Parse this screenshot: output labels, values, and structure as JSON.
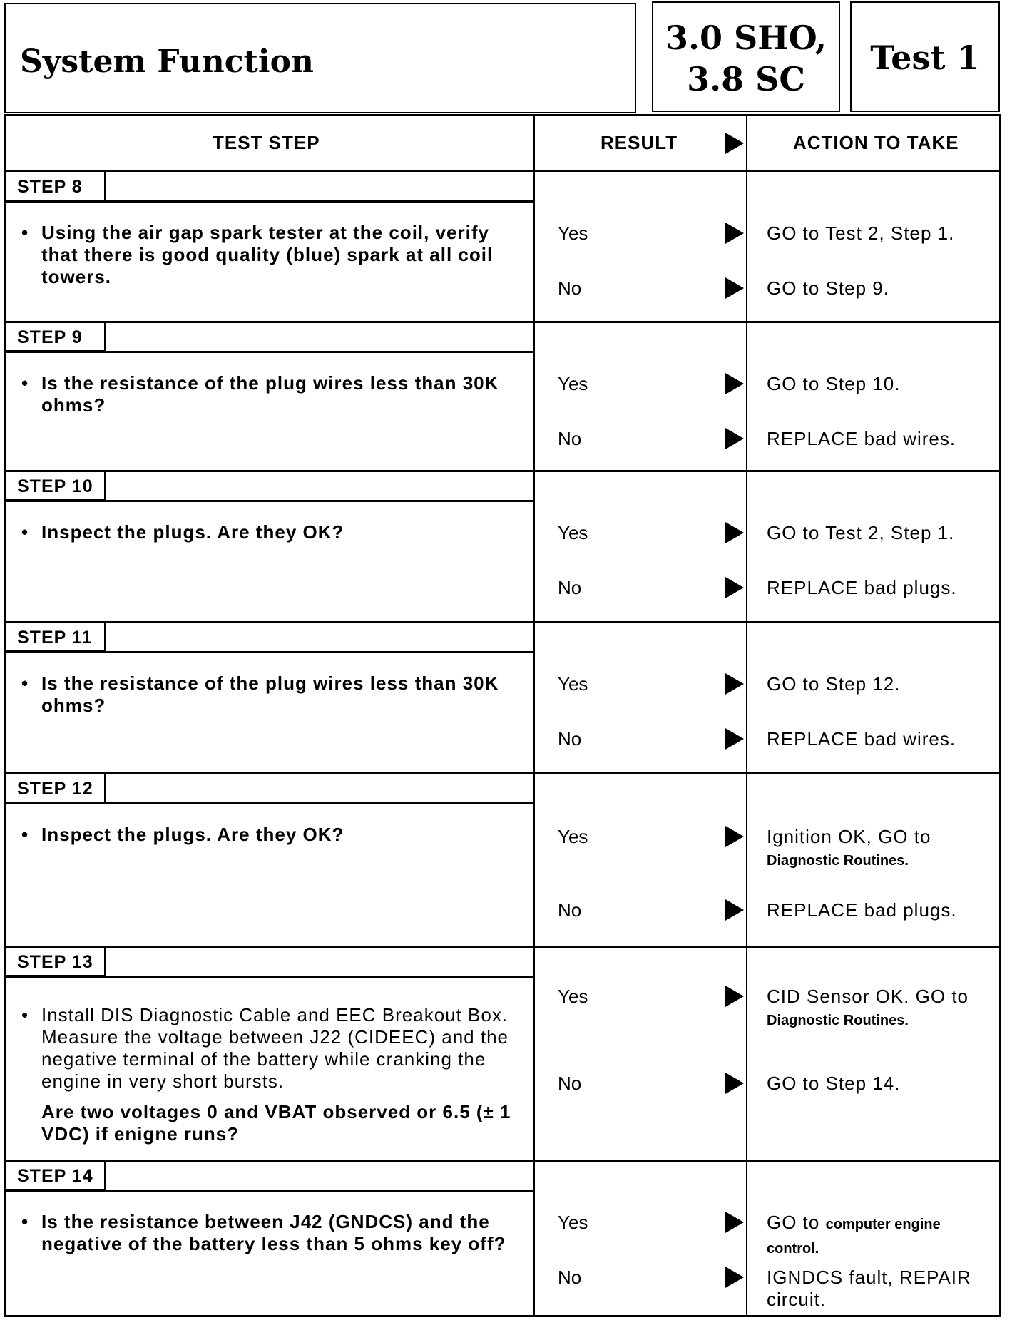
{
  "header": {
    "title": "System Function",
    "model": "3.0 SHO, 3.8 SC",
    "model_line1": "3.0 SHO,",
    "model_line2": "3.8 SC",
    "test": "Test 1"
  },
  "columns": {
    "test_step": "TEST STEP",
    "result": "RESULT",
    "action": "ACTION TO TAKE"
  },
  "steps": [
    {
      "label": "STEP 8",
      "question": "Using the air gap spark tester at the coil, verify that there is good quality (blue) spark at all coil towers.",
      "yes": "Yes",
      "yes_action": "GO to Test 2, Step 1.",
      "no": "No",
      "no_action": "GO to Step 9."
    },
    {
      "label": "STEP 9",
      "question": "Is the resistance of the plug wires less than 30K ohms?",
      "yes": "Yes",
      "yes_action": "GO to Step 10.",
      "no": "No",
      "no_action": "REPLACE bad wires."
    },
    {
      "label": "STEP 10",
      "question": "Inspect the plugs. Are they OK?",
      "yes": "Yes",
      "yes_action": "GO to Test 2, Step 1.",
      "no": "No",
      "no_action": "REPLACE bad plugs."
    },
    {
      "label": "STEP 11",
      "question": "Is the resistance of the plug wires less than 30K ohms?",
      "yes": "Yes",
      "yes_action": "GO to Step 12.",
      "no": "No",
      "no_action": "REPLACE bad wires."
    },
    {
      "label": "STEP 12",
      "question": "Inspect the plugs. Are they OK?",
      "yes": "Yes",
      "yes_action": "Ignition OK, GO to",
      "yes_action_ref": "Diagnostic Routines.",
      "no": "No",
      "no_action": "REPLACE bad plugs."
    },
    {
      "label": "STEP 13",
      "question": "Install DIS Diagnostic Cable and EEC Breakout Box. Measure the voltage between J22 (CIDEEC) and the negative terminal of the battery while cranking the engine in very short bursts.",
      "question_bold": "Are two voltages 0 and VBAT observed or 6.5 (± 1 VDC) if enigne runs?",
      "yes": "Yes",
      "yes_action": "CID Sensor OK. GO to",
      "yes_action_ref": "Diagnostic Routines.",
      "no": "No",
      "no_action": "GO to Step 14."
    },
    {
      "label": "STEP 14",
      "question": "Is the resistance between J42 (GNDCS) and the negative of the battery less than 5 ohms key off?",
      "yes": "Yes",
      "yes_action": "GO to",
      "yes_action_ref": "computer engine control.",
      "no": "No",
      "no_action": "IGNDCS fault, REPAIR circuit."
    }
  ]
}
